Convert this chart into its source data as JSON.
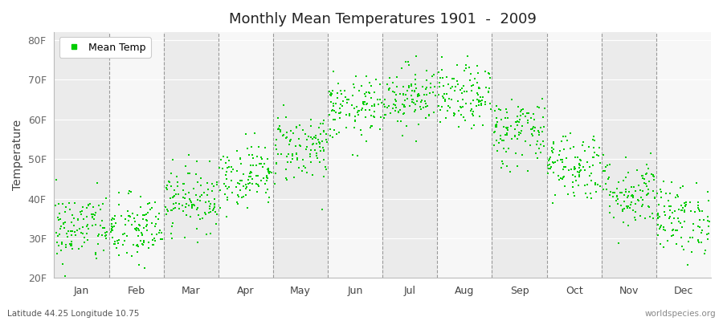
{
  "title": "Monthly Mean Temperatures 1901  -  2009",
  "ylabel": "Temperature",
  "xlabel_bottom_left": "Latitude 44.25 Longitude 10.75",
  "xlabel_bottom_right": "worldspecies.org",
  "legend_label": "Mean Temp",
  "dot_color": "#00cc00",
  "dot_size": 4,
  "background_color": "#ffffff",
  "plot_bg_color_odd": "#ebebeb",
  "plot_bg_color_even": "#f7f7f7",
  "yticks": [
    20,
    30,
    40,
    50,
    60,
    70,
    80
  ],
  "ytick_labels": [
    "20F",
    "30F",
    "40F",
    "50F",
    "60F",
    "70F",
    "80F"
  ],
  "ylim": [
    20,
    82
  ],
  "month_names": [
    "Jan",
    "Feb",
    "Mar",
    "Apr",
    "May",
    "Jun",
    "Jul",
    "Aug",
    "Sep",
    "Oct",
    "Nov",
    "Dec"
  ],
  "month_means_F": [
    32.5,
    32.0,
    40.0,
    46.0,
    53.0,
    62.5,
    66.0,
    65.5,
    57.0,
    48.5,
    41.5,
    35.0
  ],
  "month_spreads_F": [
    4.5,
    4.5,
    4.0,
    4.0,
    4.5,
    4.0,
    4.0,
    4.0,
    4.5,
    4.5,
    4.5,
    4.5
  ],
  "n_years": 109,
  "seed": 42
}
